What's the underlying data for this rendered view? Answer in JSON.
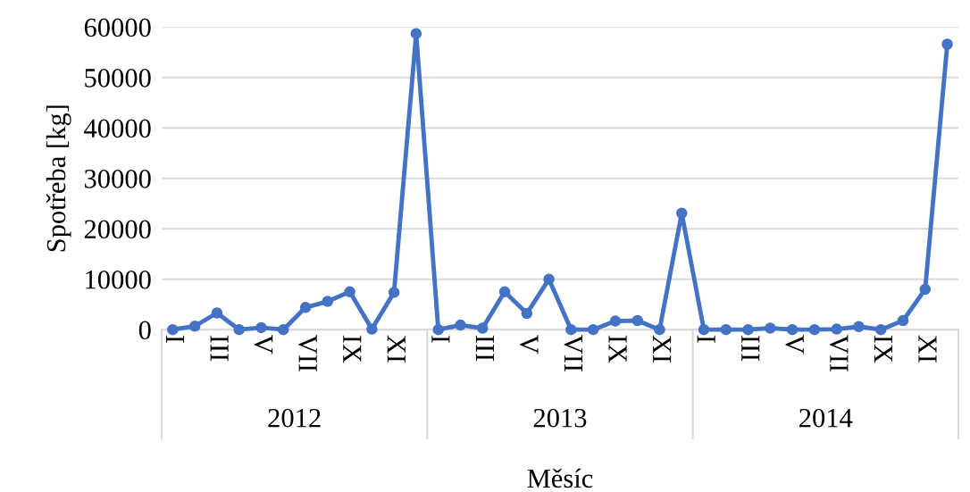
{
  "chart_data": {
    "type": "line",
    "xlabel": "Měsíc",
    "ylabel": "Spotřeba [kg]",
    "categories": [
      "I",
      null,
      "III",
      null,
      "V",
      null,
      "VII",
      null,
      "IX",
      null,
      "XI",
      null,
      "I",
      null,
      "III",
      null,
      "V",
      null,
      "VII",
      null,
      "IX",
      null,
      "XI",
      null,
      "I",
      null,
      "III",
      null,
      "V",
      null,
      "VII",
      null,
      "IX",
      null,
      "XI",
      null
    ],
    "annotations": [
      "2012",
      "2013",
      "2014"
    ],
    "series": [
      {
        "color": "#4472c4",
        "values": [
          0,
          700,
          3300,
          0,
          400,
          0,
          4400,
          5600,
          7500,
          100,
          7400,
          58700,
          0,
          900,
          300,
          7500,
          3200,
          10000,
          0,
          0,
          1700,
          1800,
          0,
          23100,
          0,
          0,
          0,
          300,
          0,
          0,
          100,
          600,
          0,
          1800,
          8000,
          56600
        ]
      }
    ],
    "ylim": [
      0,
      60000
    ],
    "yticks": [
      0,
      10000,
      20000,
      30000,
      40000,
      50000,
      60000
    ],
    "grid": "y",
    "legend": false,
    "marker": "circle",
    "line_style": "solid"
  }
}
